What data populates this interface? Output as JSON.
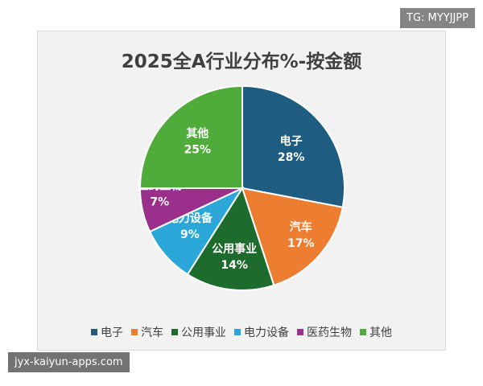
{
  "watermarks": {
    "top_right": "TG: MYYJJPP",
    "bottom_left": "jyx-kaiyun-apps.com"
  },
  "chart_data": {
    "type": "pie",
    "title": "2025全A行业分布%-按金额",
    "slices": [
      {
        "name": "电子",
        "value": 28,
        "label": "28%",
        "color": "#1f5c82"
      },
      {
        "name": "汽车",
        "value": 17,
        "label": "17%",
        "color": "#ed7d31"
      },
      {
        "name": "公用事业",
        "value": 14,
        "label": "14%",
        "color": "#1e6b2e"
      },
      {
        "name": "电力设备",
        "value": 9,
        "label": "9%",
        "color": "#2aa6d8"
      },
      {
        "name": "医药生物",
        "value": 7,
        "label": "7%",
        "color": "#9b2f8c"
      },
      {
        "name": "其他",
        "value": 25,
        "label": "25%",
        "color": "#4fab3a"
      }
    ],
    "legend_position": "bottom"
  }
}
